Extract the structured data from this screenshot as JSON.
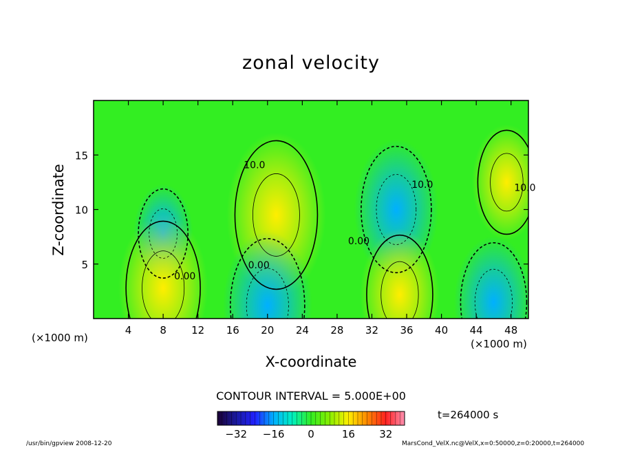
{
  "chart_data": {
    "type": "heatmap",
    "title": "zonal velocity",
    "xlabel": "X-coordinate",
    "ylabel": "Z-coordinate",
    "x_unit_label": "(×1000 m)",
    "y_unit_label": "(×1000 m)",
    "xlim": [
      0,
      50
    ],
    "ylim": [
      0,
      20
    ],
    "x_ticks": [
      4,
      8,
      12,
      16,
      20,
      24,
      28,
      32,
      36,
      40,
      44,
      48
    ],
    "y_ticks": [
      5,
      10,
      15
    ],
    "contour_interval": "CONTOUR INTERVAL = 5.000E+00",
    "contour_labels": [
      {
        "x": 18.5,
        "y": 13.8,
        "text": "10.0"
      },
      {
        "x": 37.8,
        "y": 12.0,
        "text": "10.0"
      },
      {
        "x": 49.6,
        "y": 11.7,
        "text": "10.0"
      },
      {
        "x": 30.5,
        "y": 6.8,
        "text": "0.00"
      },
      {
        "x": 19.0,
        "y": 4.6,
        "text": "0.00"
      },
      {
        "x": 10.5,
        "y": 3.6,
        "text": "0.00"
      }
    ],
    "features": [
      {
        "x": 21,
        "y": 9.5,
        "value": 20,
        "kind": "positive max"
      },
      {
        "x": 34.8,
        "y": 10,
        "value": -17,
        "kind": "negative min"
      },
      {
        "x": 20,
        "y": 1.2,
        "value": -18,
        "kind": "negative min"
      },
      {
        "x": 46,
        "y": 1.5,
        "value": -16,
        "kind": "negative min"
      },
      {
        "x": 8,
        "y": 7.8,
        "value": -12,
        "kind": "negative min"
      },
      {
        "x": 8,
        "y": 2.8,
        "value": 18,
        "kind": "positive max"
      },
      {
        "x": 35.2,
        "y": 2.2,
        "value": 16,
        "kind": "positive max"
      },
      {
        "x": 47.5,
        "y": 12.5,
        "value": 14,
        "kind": "positive max"
      }
    ],
    "colorbar": {
      "min": -40,
      "max": 40,
      "tick_values": [
        -32,
        -16,
        0,
        16,
        32
      ],
      "tick_labels": [
        "−32",
        "−16",
        "0",
        "16",
        "32"
      ]
    }
  },
  "time_label": "t=264000 s",
  "footer_left": "/usr/bin/gpview   2008-12-20",
  "footer_right": "MarsCond_VelX.nc@VelX,x=0:50000,z=0:20000,t=264000"
}
